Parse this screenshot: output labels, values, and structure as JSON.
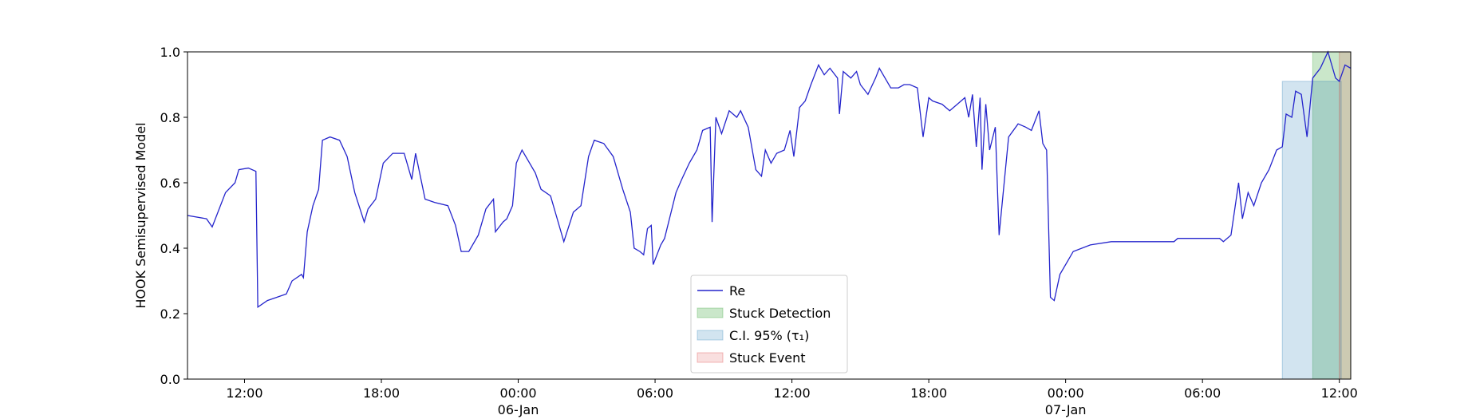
{
  "chart_data": {
    "type": "line",
    "ylabel": "HOOK Semisupervised Model",
    "x": [
      "1900-01-05 09:30",
      "1900-01-05 10:20",
      "1900-01-05 10:35",
      "1900-01-05 11:10",
      "1900-01-05 11:35",
      "1900-01-05 11:45",
      "1900-01-05 12:10",
      "1900-01-05 12:30",
      "1900-01-05 12:35",
      "1900-01-05 13:00",
      "1900-01-05 13:50",
      "1900-01-05 14:05",
      "1900-01-05 14:30",
      "1900-01-05 14:35",
      "1900-01-05 14:45",
      "1900-01-05 15:00",
      "1900-01-05 15:15",
      "1900-01-05 15:25",
      "1900-01-05 15:45",
      "1900-01-05 16:10",
      "1900-01-05 16:30",
      "1900-01-05 16:50",
      "1900-01-05 17:15",
      "1900-01-05 17:25",
      "1900-01-05 17:45",
      "1900-01-05 18:05",
      "1900-01-05 18:30",
      "1900-01-05 19:00",
      "1900-01-05 19:20",
      "1900-01-05 19:30",
      "1900-01-05 19:55",
      "1900-01-05 20:20",
      "1900-01-05 20:55",
      "1900-01-05 21:15",
      "1900-01-05 21:30",
      "1900-01-05 21:50",
      "1900-01-05 22:15",
      "1900-01-05 22:35",
      "1900-01-05 22:55",
      "1900-01-05 23:00",
      "1900-01-05 23:20",
      "1900-01-05 23:30",
      "1900-01-05 23:45",
      "1900-01-05 23:55",
      "1900-01-06 00:10",
      "1900-01-06 00:25",
      "1900-01-06 00:45",
      "1900-01-06 01:00",
      "1900-01-06 01:25",
      "1900-01-06 01:40",
      "1900-01-06 02:00",
      "1900-01-06 02:25",
      "1900-01-06 02:45",
      "1900-01-06 03:05",
      "1900-01-06 03:20",
      "1900-01-06 03:45",
      "1900-01-06 04:10",
      "1900-01-06 04:35",
      "1900-01-06 04:55",
      "1900-01-06 05:05",
      "1900-01-06 05:20",
      "1900-01-06 05:30",
      "1900-01-06 05:40",
      "1900-01-06 05:50",
      "1900-01-06 05:55",
      "1900-01-06 06:15",
      "1900-01-06 06:25",
      "1900-01-06 06:40",
      "1900-01-06 06:55",
      "1900-01-06 07:10",
      "1900-01-06 07:30",
      "1900-01-06 07:50",
      "1900-01-06 08:05",
      "1900-01-06 08:25",
      "1900-01-06 08:30",
      "1900-01-06 08:40",
      "1900-01-06 08:55",
      "1900-01-06 09:15",
      "1900-01-06 09:35",
      "1900-01-06 09:45",
      "1900-01-06 10:05",
      "1900-01-06 10:25",
      "1900-01-06 10:40",
      "1900-01-06 10:50",
      "1900-01-06 11:05",
      "1900-01-06 11:20",
      "1900-01-06 11:40",
      "1900-01-06 11:55",
      "1900-01-06 12:05",
      "1900-01-06 12:20",
      "1900-01-06 12:35",
      "1900-01-06 12:50",
      "1900-01-06 13:10",
      "1900-01-06 13:25",
      "1900-01-06 13:40",
      "1900-01-06 14:00",
      "1900-01-06 14:05",
      "1900-01-06 14:15",
      "1900-01-06 14:35",
      "1900-01-06 14:50",
      "1900-01-06 15:00",
      "1900-01-06 15:20",
      "1900-01-06 15:40",
      "1900-01-06 15:50",
      "1900-01-06 16:05",
      "1900-01-06 16:20",
      "1900-01-06 16:40",
      "1900-01-06 16:55",
      "1900-01-06 17:10",
      "1900-01-06 17:30",
      "1900-01-06 17:45",
      "1900-01-06 18:00",
      "1900-01-06 18:10",
      "1900-01-06 18:35",
      "1900-01-06 18:55",
      "1900-01-06 19:15",
      "1900-01-06 19:35",
      "1900-01-06 19:45",
      "1900-01-06 19:55",
      "1900-01-06 20:05",
      "1900-01-06 20:15",
      "1900-01-06 20:20",
      "1900-01-06 20:30",
      "1900-01-06 20:40",
      "1900-01-06 20:55",
      "1900-01-06 21:05",
      "1900-01-06 21:20",
      "1900-01-06 21:30",
      "1900-01-06 21:55",
      "1900-01-06 22:15",
      "1900-01-06 22:30",
      "1900-01-06 22:50",
      "1900-01-06 23:00",
      "1900-01-06 23:10",
      "1900-01-06 23:20",
      "1900-01-06 23:30",
      "1900-01-06 23:45",
      "1900-01-07 00:05",
      "1900-01-07 00:20",
      "1900-01-07 01:05",
      "1900-01-07 02:00",
      "1900-01-07 02:15",
      "1900-01-07 03:35",
      "1900-01-07 04:45",
      "1900-01-07 04:55",
      "1900-01-07 06:45",
      "1900-01-07 06:55",
      "1900-01-07 07:15",
      "1900-01-07 07:35",
      "1900-01-07 07:45",
      "1900-01-07 08:00",
      "1900-01-07 08:15",
      "1900-01-07 08:35",
      "1900-01-07 08:55",
      "1900-01-07 09:15",
      "1900-01-07 09:30",
      "1900-01-07 09:40",
      "1900-01-07 09:55",
      "1900-01-07 10:05",
      "1900-01-07 10:20",
      "1900-01-07 10:35",
      "1900-01-07 10:50",
      "1900-01-07 11:10",
      "1900-01-07 11:30",
      "1900-01-07 11:50",
      "1900-01-07 12:00",
      "1900-01-07 12:15",
      "1900-01-07 12:30"
    ],
    "series": [
      {
        "name": "Re",
        "color": "#2424cc",
        "values": [
          0.5,
          0.49,
          0.465,
          0.57,
          0.6,
          0.64,
          0.645,
          0.635,
          0.22,
          0.24,
          0.26,
          0.3,
          0.32,
          0.31,
          0.45,
          0.53,
          0.58,
          0.73,
          0.74,
          0.73,
          0.68,
          0.57,
          0.48,
          0.52,
          0.55,
          0.66,
          0.69,
          0.69,
          0.61,
          0.69,
          0.55,
          0.54,
          0.53,
          0.47,
          0.39,
          0.39,
          0.44,
          0.52,
          0.55,
          0.45,
          0.48,
          0.49,
          0.53,
          0.66,
          0.7,
          0.67,
          0.63,
          0.58,
          0.56,
          0.5,
          0.42,
          0.51,
          0.53,
          0.68,
          0.73,
          0.72,
          0.68,
          0.58,
          0.51,
          0.4,
          0.39,
          0.38,
          0.46,
          0.47,
          0.35,
          0.41,
          0.43,
          0.5,
          0.57,
          0.61,
          0.66,
          0.7,
          0.76,
          0.77,
          0.48,
          0.8,
          0.75,
          0.82,
          0.8,
          0.82,
          0.77,
          0.64,
          0.62,
          0.7,
          0.66,
          0.69,
          0.7,
          0.76,
          0.68,
          0.83,
          0.85,
          0.9,
          0.96,
          0.93,
          0.95,
          0.92,
          0.81,
          0.94,
          0.92,
          0.94,
          0.9,
          0.87,
          0.92,
          0.95,
          0.92,
          0.89,
          0.89,
          0.9,
          0.9,
          0.89,
          0.74,
          0.86,
          0.85,
          0.84,
          0.82,
          0.84,
          0.86,
          0.8,
          0.87,
          0.71,
          0.86,
          0.64,
          0.84,
          0.7,
          0.77,
          0.44,
          0.62,
          0.74,
          0.78,
          0.77,
          0.76,
          0.82,
          0.72,
          0.7,
          0.25,
          0.24,
          0.32,
          0.36,
          0.39,
          0.41,
          0.42,
          0.42,
          0.42,
          0.42,
          0.43,
          0.43,
          0.42,
          0.44,
          0.6,
          0.49,
          0.57,
          0.53,
          0.6,
          0.64,
          0.7,
          0.71,
          0.81,
          0.8,
          0.88,
          0.87,
          0.74,
          0.92,
          0.95,
          1.0,
          0.92,
          0.91,
          0.96,
          0.95
        ]
      }
    ],
    "spans": [
      {
        "name": "Stuck Detection",
        "color": "#2ca02c",
        "x": [
          "1900-01-07 10:50",
          "1900-01-07 12:30"
        ],
        "y": [
          0,
          1
        ]
      },
      {
        "name": "C.I. 95% (τ₁)",
        "color": "#1f77b4",
        "x": [
          "1900-01-07 09:30",
          "1900-01-07 12:05"
        ],
        "y": [
          0,
          0.91
        ]
      },
      {
        "name": "Stuck Event",
        "color": "#d62728",
        "x": [
          "1900-01-07 12:00",
          "1900-01-07 12:30"
        ],
        "y": [
          0,
          1
        ]
      }
    ],
    "xlim": [
      "1900-01-05 09:30",
      "1900-01-07 12:30"
    ],
    "xticks": [
      {
        "value": "1900-01-05 12:00",
        "label": "12:00"
      },
      {
        "value": "1900-01-05 18:00",
        "label": "18:00"
      },
      {
        "value": "1900-01-06 00:00",
        "label": "00:00\n06-Jan\n1900"
      },
      {
        "value": "1900-01-06 06:00",
        "label": "06:00"
      },
      {
        "value": "1900-01-06 12:00",
        "label": "12:00"
      },
      {
        "value": "1900-01-06 18:00",
        "label": "18:00"
      },
      {
        "value": "1900-01-07 00:00",
        "label": "00:00\n07-Jan"
      },
      {
        "value": "1900-01-07 06:00",
        "label": "06:00"
      },
      {
        "value": "1900-01-07 12:00",
        "label": "12:00"
      }
    ],
    "ylim": [
      0,
      1
    ],
    "yticks": [
      {
        "value": 0,
        "label": "0.0"
      },
      {
        "value": 0.2,
        "label": "0.2"
      },
      {
        "value": 0.4,
        "label": "0.4"
      },
      {
        "value": 0.6,
        "label": "0.6"
      },
      {
        "value": 0.8,
        "label": "0.8"
      },
      {
        "value": 1,
        "label": "1.0"
      }
    ],
    "legend": "lower center"
  }
}
